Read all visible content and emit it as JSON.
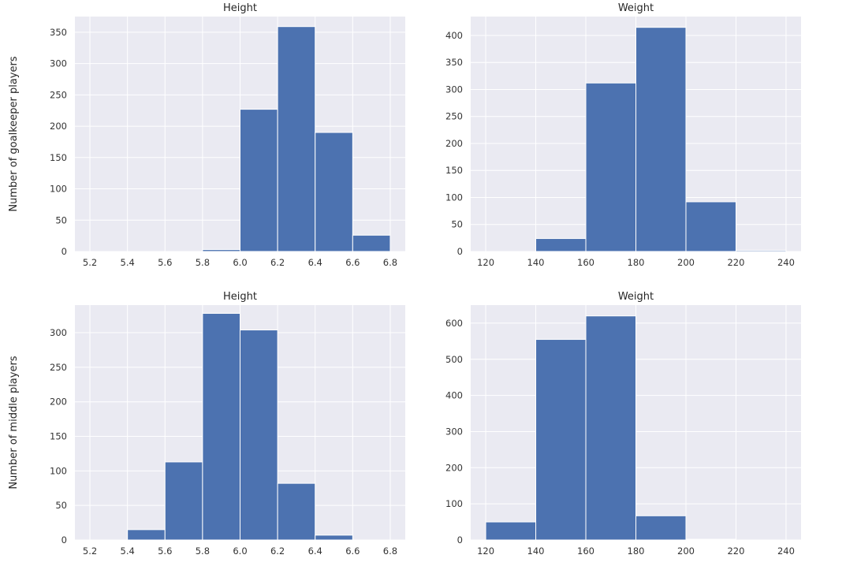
{
  "row_labels": [
    "Number of goalkeeper players",
    "Number of middle players"
  ],
  "chart_data": [
    {
      "type": "bar",
      "title": "Height",
      "xlabel": "",
      "ylabel": "Number of goalkeeper players",
      "bin_edges": [
        5.2,
        5.4,
        5.6,
        5.8,
        6.0,
        6.2,
        6.4,
        6.6,
        6.8
      ],
      "values": [
        0,
        0,
        0,
        3,
        227,
        359,
        190,
        26
      ],
      "xlim": [
        5.12,
        6.88
      ],
      "ylim": [
        0,
        375
      ],
      "xticks": [
        "5.2",
        "5.4",
        "5.6",
        "5.8",
        "6.0",
        "6.2",
        "6.4",
        "6.6",
        "6.8"
      ],
      "yticks": [
        "0",
        "50",
        "100",
        "150",
        "200",
        "250",
        "300",
        "350"
      ],
      "grid": true,
      "color": "#4c72b0"
    },
    {
      "type": "bar",
      "title": "Weight",
      "xlabel": "",
      "ylabel": "",
      "bin_edges": [
        120,
        140,
        160,
        180,
        200,
        220,
        240
      ],
      "values": [
        0,
        24,
        312,
        415,
        92,
        2
      ],
      "xlim": [
        114,
        246
      ],
      "ylim": [
        0,
        435
      ],
      "xticks": [
        "120",
        "140",
        "160",
        "180",
        "200",
        "220",
        "240"
      ],
      "yticks": [
        "0",
        "50",
        "100",
        "150",
        "200",
        "250",
        "300",
        "350",
        "400"
      ],
      "grid": true,
      "color": "#4c72b0"
    },
    {
      "type": "bar",
      "title": "Height",
      "xlabel": "",
      "ylabel": "Number of middle players",
      "bin_edges": [
        5.2,
        5.4,
        5.6,
        5.8,
        6.0,
        6.2,
        6.4,
        6.6,
        6.8
      ],
      "values": [
        0,
        15,
        113,
        328,
        304,
        82,
        7,
        0
      ],
      "xlim": [
        5.12,
        6.88
      ],
      "ylim": [
        0,
        340
      ],
      "xticks": [
        "5.2",
        "5.4",
        "5.6",
        "5.8",
        "6.0",
        "6.2",
        "6.4",
        "6.6",
        "6.8"
      ],
      "yticks": [
        "0",
        "50",
        "100",
        "150",
        "200",
        "250",
        "300"
      ],
      "grid": true,
      "color": "#4c72b0"
    },
    {
      "type": "bar",
      "title": "Weight",
      "xlabel": "",
      "ylabel": "",
      "bin_edges": [
        120,
        140,
        160,
        180,
        200,
        220,
        240
      ],
      "values": [
        50,
        555,
        620,
        67,
        2,
        0
      ],
      "xlim": [
        114,
        246
      ],
      "ylim": [
        0,
        650
      ],
      "xticks": [
        "120",
        "140",
        "160",
        "180",
        "200",
        "220",
        "240"
      ],
      "yticks": [
        "0",
        "100",
        "200",
        "300",
        "400",
        "500",
        "600"
      ],
      "grid": true,
      "color": "#4c72b0"
    }
  ]
}
